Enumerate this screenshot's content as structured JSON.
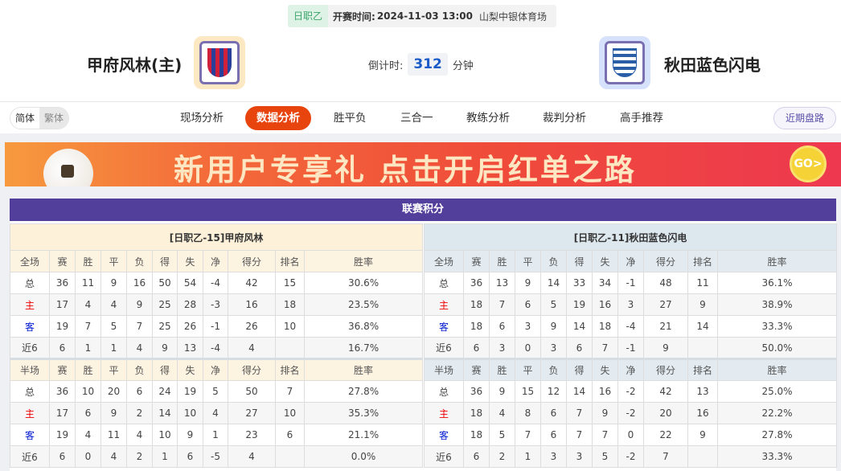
{
  "match": {
    "league": "日职乙",
    "kickoff_label": "开赛时间:",
    "kickoff": "2024-11-03 13:00",
    "venue": "山梨中银体育场",
    "home_team": "甲府风林(主)",
    "away_team": "秋田蓝色闪电",
    "countdown_label": "倒计时:",
    "countdown_value": "312",
    "countdown_unit": "分钟"
  },
  "nav": {
    "lang": [
      "简体",
      "繁体"
    ],
    "items": [
      "现场分析",
      "数据分析",
      "胜平负",
      "三合一",
      "教练分析",
      "裁判分析",
      "高手推荐"
    ],
    "active": "数据分析",
    "recent": "近期盘路"
  },
  "banner": {
    "text": "新用户专享礼 点击开启红单之路",
    "go": "GO>"
  },
  "standings": {
    "title": "联赛积分",
    "columns_full": [
      "全场",
      "赛",
      "胜",
      "平",
      "负",
      "得",
      "失",
      "净",
      "得分",
      "排名",
      "胜率"
    ],
    "columns_half": [
      "半场",
      "赛",
      "胜",
      "平",
      "负",
      "得",
      "失",
      "净",
      "得分",
      "排名",
      "胜率"
    ],
    "home": {
      "title": "[日职乙-15]甲府风林",
      "full": [
        [
          "总",
          "36",
          "11",
          "9",
          "16",
          "50",
          "54",
          "-4",
          "42",
          "15",
          "30.6%"
        ],
        [
          "主",
          "17",
          "4",
          "4",
          "9",
          "25",
          "28",
          "-3",
          "16",
          "18",
          "23.5%"
        ],
        [
          "客",
          "19",
          "7",
          "5",
          "7",
          "25",
          "26",
          "-1",
          "26",
          "10",
          "36.8%"
        ],
        [
          "近6",
          "6",
          "1",
          "1",
          "4",
          "9",
          "13",
          "-4",
          "4",
          "",
          "16.7%"
        ]
      ],
      "half": [
        [
          "总",
          "36",
          "10",
          "20",
          "6",
          "24",
          "19",
          "5",
          "50",
          "7",
          "27.8%"
        ],
        [
          "主",
          "17",
          "6",
          "9",
          "2",
          "14",
          "10",
          "4",
          "27",
          "10",
          "35.3%"
        ],
        [
          "客",
          "19",
          "4",
          "11",
          "4",
          "10",
          "9",
          "1",
          "23",
          "6",
          "21.1%"
        ],
        [
          "近6",
          "6",
          "0",
          "4",
          "2",
          "1",
          "6",
          "-5",
          "4",
          "",
          "0.0%"
        ]
      ]
    },
    "away": {
      "title": "[日职乙-11]秋田蓝色闪电",
      "full": [
        [
          "总",
          "36",
          "13",
          "9",
          "14",
          "33",
          "34",
          "-1",
          "48",
          "11",
          "36.1%"
        ],
        [
          "主",
          "18",
          "7",
          "6",
          "5",
          "19",
          "16",
          "3",
          "27",
          "9",
          "38.9%"
        ],
        [
          "客",
          "18",
          "6",
          "3",
          "9",
          "14",
          "18",
          "-4",
          "21",
          "14",
          "33.3%"
        ],
        [
          "近6",
          "6",
          "3",
          "0",
          "3",
          "6",
          "7",
          "-1",
          "9",
          "",
          "50.0%"
        ]
      ],
      "half": [
        [
          "总",
          "36",
          "9",
          "15",
          "12",
          "14",
          "16",
          "-2",
          "42",
          "13",
          "25.0%"
        ],
        [
          "主",
          "18",
          "4",
          "8",
          "6",
          "7",
          "9",
          "-2",
          "20",
          "16",
          "22.2%"
        ],
        [
          "客",
          "18",
          "5",
          "7",
          "6",
          "7",
          "7",
          "0",
          "22",
          "9",
          "27.8%"
        ],
        [
          "近6",
          "6",
          "2",
          "1",
          "3",
          "3",
          "5",
          "-2",
          "7",
          "",
          "33.3%"
        ]
      ]
    }
  }
}
